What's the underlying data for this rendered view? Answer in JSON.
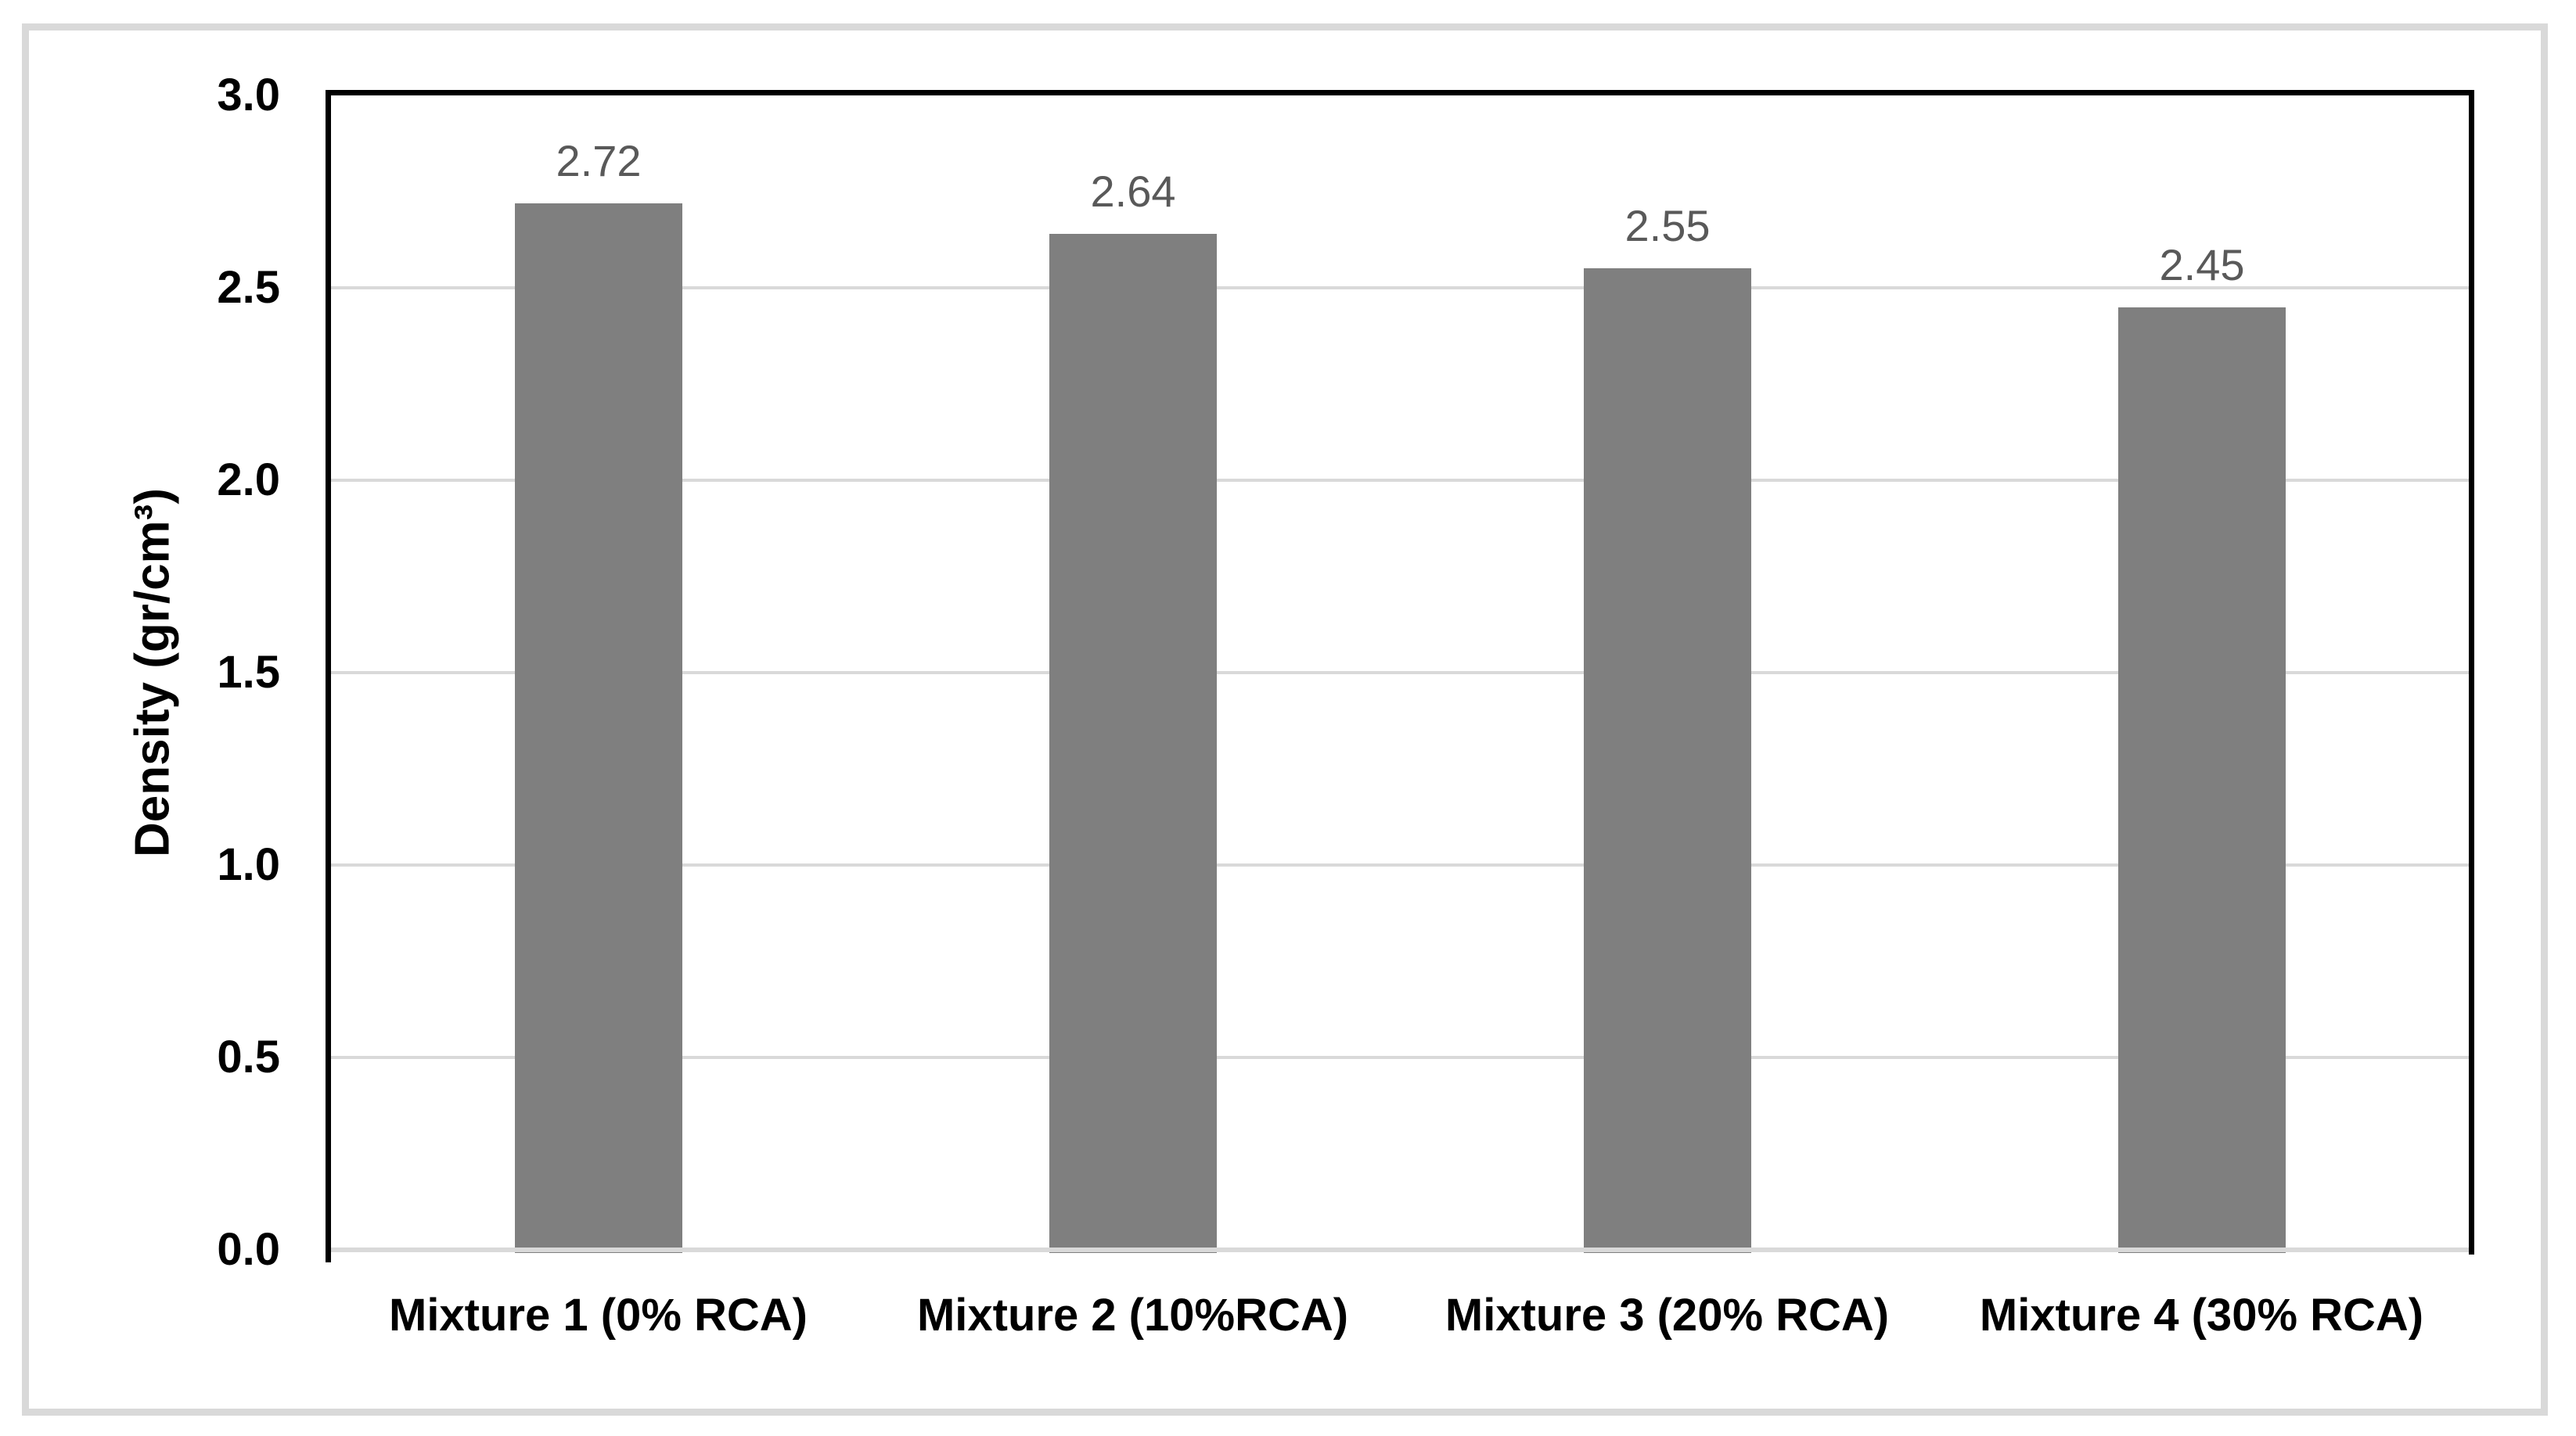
{
  "chart_data": {
    "type": "bar",
    "title": "",
    "categories": [
      "Mixture 1 (0% RCA)",
      "Mixture 2 (10%RCA)",
      "Mixture 3 (20% RCA)",
      "Mixture 4 (30% RCA)"
    ],
    "values": [
      2.72,
      2.64,
      2.55,
      2.45
    ],
    "data_labels": [
      "2.72",
      "2.64",
      "2.55",
      "2.45"
    ],
    "xlabel": "",
    "ylabel": "Density (gr/cm³)",
    "ylim": [
      0.0,
      3.0
    ],
    "ytick_step": 0.5,
    "ytick_labels": [
      "0.0",
      "0.5",
      "1.0",
      "1.5",
      "2.0",
      "2.5",
      "3.0"
    ],
    "grid": "horizontal-on",
    "legend": "none",
    "series_name": "Density"
  },
  "colors": {
    "background": "#FFFFFF",
    "bar_fill": "#7F7F7F",
    "gridline": "#D9D9D9",
    "baseline": "#D9D9D9",
    "axis_line": "#000000",
    "data_label": "#595959",
    "tick_label": "#000000",
    "category_label": "#000000",
    "figure_border": "#D9D9D9"
  }
}
